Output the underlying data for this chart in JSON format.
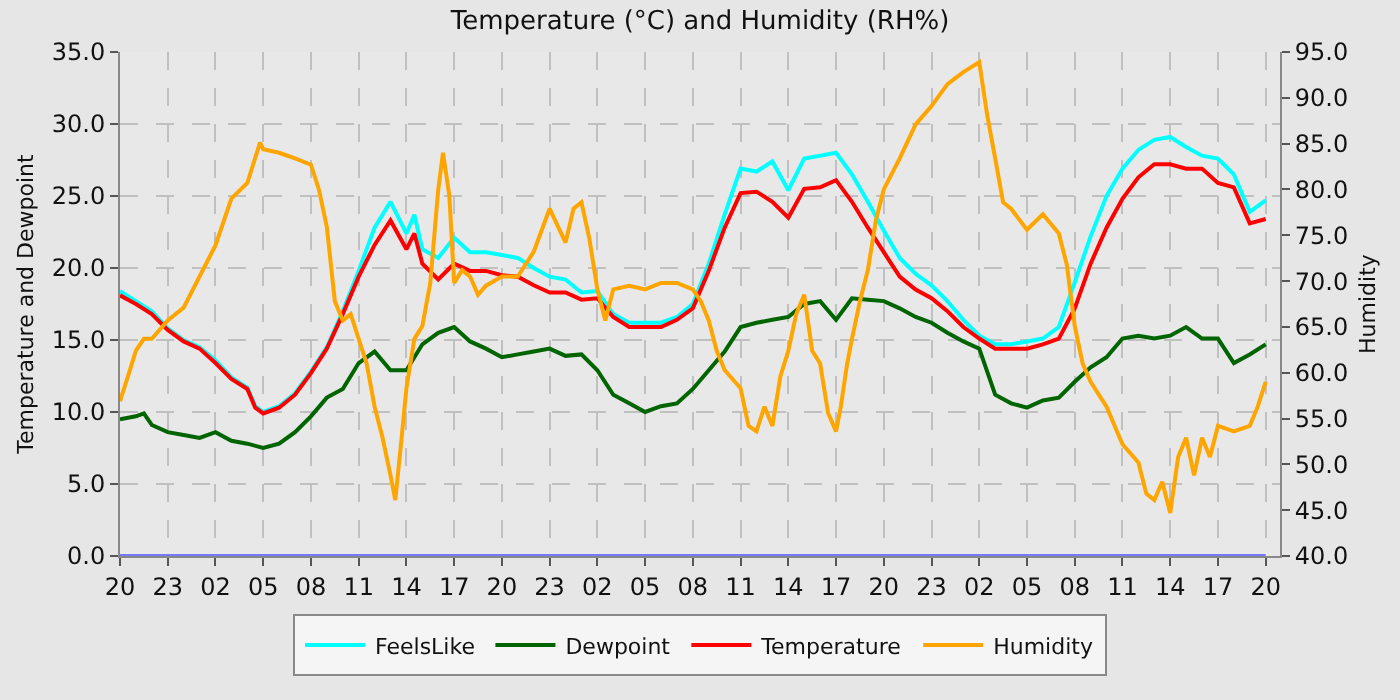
{
  "chart_data": {
    "type": "line",
    "title": "Temperature (°C) and Humidity (RH%)",
    "ylabel": "Temperature and Dewpoint",
    "y2label": "Humidity",
    "xlim": [
      "--01-01T20:00",
      "--01-04T20:54"
    ],
    "ylim": [
      0,
      35
    ],
    "y2lim": [
      40,
      95
    ],
    "xticks": [
      {
        "value": "--01-01T20:00",
        "label": "20"
      },
      {
        "value": "--01-01T23:00",
        "label": "23"
      },
      {
        "value": "--01-02T02:00",
        "label": "02"
      },
      {
        "value": "--01-02T05:00",
        "label": "05"
      },
      {
        "value": "--01-02T08:00",
        "label": "08"
      },
      {
        "value": "--01-02T11:00",
        "label": "11"
      },
      {
        "value": "--01-02T14:00",
        "label": "14"
      },
      {
        "value": "--01-02T17:00",
        "label": "17"
      },
      {
        "value": "--01-02T20:00",
        "label": "20"
      },
      {
        "value": "--01-02T23:00",
        "label": "23"
      },
      {
        "value": "--01-03T02:00",
        "label": "02"
      },
      {
        "value": "--01-03T05:00",
        "label": "05"
      },
      {
        "value": "--01-03T08:00",
        "label": "08"
      },
      {
        "value": "--01-03T11:00",
        "label": "11"
      },
      {
        "value": "--01-03T14:00",
        "label": "14"
      },
      {
        "value": "--01-03T17:00",
        "label": "17"
      },
      {
        "value": "--01-03T20:00",
        "label": "20"
      },
      {
        "value": "--01-03T23:00",
        "label": "23"
      },
      {
        "value": "--01-04T02:00",
        "label": "02"
      },
      {
        "value": "--01-04T05:00",
        "label": "05"
      },
      {
        "value": "--01-04T08:00",
        "label": "08"
      },
      {
        "value": "--01-04T11:00",
        "label": "11"
      },
      {
        "value": "--01-04T14:00",
        "label": "14"
      },
      {
        "value": "--01-04T17:00",
        "label": "17"
      },
      {
        "value": "--01-04T20:00",
        "label": "20"
      }
    ],
    "yticks": [
      {
        "value": 0,
        "label": "0.0"
      },
      {
        "value": 5,
        "label": "5.0"
      },
      {
        "value": 10,
        "label": "10.0"
      },
      {
        "value": 15,
        "label": "15.0"
      },
      {
        "value": 20,
        "label": "20.0"
      },
      {
        "value": 25,
        "label": "25.0"
      },
      {
        "value": 30,
        "label": "30.0"
      },
      {
        "value": 35,
        "label": "35.0"
      }
    ],
    "y2ticks": [
      {
        "value": 40,
        "label": "40.0"
      },
      {
        "value": 45,
        "label": "45.0"
      },
      {
        "value": 50,
        "label": "50.0"
      },
      {
        "value": 55,
        "label": "55.0"
      },
      {
        "value": 60,
        "label": "60.0"
      },
      {
        "value": 65,
        "label": "65.0"
      },
      {
        "value": 70,
        "label": "70.0"
      },
      {
        "value": 75,
        "label": "75.0"
      },
      {
        "value": 80,
        "label": "80.0"
      },
      {
        "value": 85,
        "label": "85.0"
      },
      {
        "value": 90,
        "label": "90.0"
      },
      {
        "value": 95,
        "label": "95.0"
      }
    ],
    "grid": true,
    "legend": "bottom",
    "line_style": "solid",
    "series": [
      {
        "name": "FeelsLike",
        "color": "#00ffff",
        "x": [
          "--01-01T20:00",
          "--01-01T21:00",
          "--01-01T22:00",
          "--01-01T23:00",
          "--01-02T00:00",
          "--01-02T01:00",
          "--01-02T02:00",
          "--01-02T03:00",
          "--01-02T04:00",
          "--01-02T04:30",
          "--01-02T05:00",
          "--01-02T06:00",
          "--01-02T07:00",
          "--01-02T08:00",
          "--01-02T09:00",
          "--01-02T10:00",
          "--01-02T11:00",
          "--01-02T12:00",
          "--01-02T13:00",
          "--01-02T14:00",
          "--01-02T14:30",
          "--01-02T15:00",
          "--01-02T16:00",
          "--01-02T17:00",
          "--01-02T18:00",
          "--01-02T19:00",
          "--01-02T20:00",
          "--01-02T21:00",
          "--01-02T22:00",
          "--01-02T23:00",
          "--01-03T00:00",
          "--01-03T01:00",
          "--01-03T02:00",
          "--01-03T03:00",
          "--01-03T04:00",
          "--01-03T05:00",
          "--01-03T06:00",
          "--01-03T07:00",
          "--01-03T08:00",
          "--01-03T09:00",
          "--01-03T10:00",
          "--01-03T11:00",
          "--01-03T12:00",
          "--01-03T13:00",
          "--01-03T14:00",
          "--01-03T15:00",
          "--01-03T16:00",
          "--01-03T17:00",
          "--01-03T18:00",
          "--01-03T19:00",
          "--01-03T20:00",
          "--01-03T21:00",
          "--01-03T22:00",
          "--01-03T23:00",
          "--01-04T00:00",
          "--01-04T01:00",
          "--01-04T02:00",
          "--01-04T03:00",
          "--01-04T04:00",
          "--01-04T05:00",
          "--01-04T06:00",
          "--01-04T07:00",
          "--01-04T08:00",
          "--01-04T09:00",
          "--01-04T10:00",
          "--01-04T11:00",
          "--01-04T12:00",
          "--01-04T13:00",
          "--01-04T14:00",
          "--01-04T15:00",
          "--01-04T16:00",
          "--01-04T17:00",
          "--01-04T18:00",
          "--01-04T19:00",
          "--01-04T20:00"
        ],
        "values": [
          18.4,
          17.7,
          17.0,
          15.8,
          15.0,
          14.5,
          13.6,
          12.4,
          11.7,
          10.4,
          10.0,
          10.4,
          11.3,
          12.8,
          14.5,
          17.0,
          19.8,
          22.8,
          24.6,
          22.4,
          23.7,
          21.3,
          20.7,
          22.1,
          21.1,
          21.1,
          20.9,
          20.7,
          20.0,
          19.4,
          19.2,
          18.3,
          18.4,
          16.8,
          16.2,
          16.2,
          16.2,
          16.6,
          17.5,
          20.3,
          23.7,
          26.9,
          26.7,
          27.4,
          25.4,
          27.6,
          27.8,
          28.0,
          26.5,
          24.6,
          22.6,
          20.7,
          19.6,
          18.8,
          17.7,
          16.4,
          15.3,
          14.7,
          14.7,
          14.9,
          15.1,
          15.9,
          19.0,
          22.2,
          25.0,
          26.9,
          28.2,
          28.9,
          29.1,
          28.4,
          27.8,
          27.6,
          26.5,
          23.9,
          24.7
        ]
      },
      {
        "name": "Dewpoint",
        "color": "#006400",
        "x": [
          "--01-01T20:00",
          "--01-01T21:00",
          "--01-01T21:30",
          "--01-01T22:00",
          "--01-01T23:00",
          "--01-02T00:00",
          "--01-02T01:00",
          "--01-02T02:00",
          "--01-02T03:00",
          "--01-02T04:00",
          "--01-02T05:00",
          "--01-02T06:00",
          "--01-02T07:00",
          "--01-02T08:00",
          "--01-02T09:00",
          "--01-02T10:00",
          "--01-02T11:00",
          "--01-02T12:00",
          "--01-02T13:00",
          "--01-02T14:00",
          "--01-02T15:00",
          "--01-02T16:00",
          "--01-02T17:00",
          "--01-02T18:00",
          "--01-02T19:00",
          "--01-02T20:00",
          "--01-02T21:00",
          "--01-02T22:00",
          "--01-02T23:00",
          "--01-03T00:00",
          "--01-03T01:00",
          "--01-03T02:00",
          "--01-03T03:00",
          "--01-03T04:00",
          "--01-03T05:00",
          "--01-03T06:00",
          "--01-03T07:00",
          "--01-03T08:00",
          "--01-03T09:00",
          "--01-03T10:00",
          "--01-03T11:00",
          "--01-03T12:00",
          "--01-03T13:00",
          "--01-03T14:00",
          "--01-03T15:00",
          "--01-03T16:00",
          "--01-03T17:00",
          "--01-03T18:00",
          "--01-03T19:00",
          "--01-03T20:00",
          "--01-03T21:00",
          "--01-03T22:00",
          "--01-03T23:00",
          "--01-04T00:00",
          "--01-04T01:00",
          "--01-04T02:00",
          "--01-04T03:00",
          "--01-04T04:00",
          "--01-04T05:00",
          "--01-04T06:00",
          "--01-04T07:00",
          "--01-04T08:00",
          "--01-04T09:00",
          "--01-04T10:00",
          "--01-04T11:00",
          "--01-04T12:00",
          "--01-04T13:00",
          "--01-04T14:00",
          "--01-04T15:00",
          "--01-04T16:00",
          "--01-04T17:00",
          "--01-04T18:00",
          "--01-04T19:00",
          "--01-04T20:00"
        ],
        "values": [
          9.5,
          9.7,
          9.9,
          9.1,
          8.6,
          8.4,
          8.2,
          8.6,
          8.0,
          7.8,
          7.5,
          7.8,
          8.6,
          9.7,
          11.0,
          11.6,
          13.4,
          14.2,
          12.9,
          12.9,
          14.7,
          15.5,
          15.9,
          14.9,
          14.4,
          13.8,
          14.0,
          14.2,
          14.4,
          13.9,
          14.0,
          12.9,
          11.2,
          10.6,
          10.0,
          10.4,
          10.6,
          11.6,
          12.9,
          14.2,
          15.9,
          16.2,
          16.4,
          16.6,
          17.5,
          17.7,
          16.4,
          17.9,
          17.8,
          17.7,
          17.2,
          16.6,
          16.2,
          15.5,
          14.9,
          14.4,
          11.2,
          10.6,
          10.3,
          10.8,
          11.0,
          12.1,
          13.1,
          13.8,
          15.1,
          15.3,
          15.1,
          15.3,
          15.9,
          15.1,
          15.1,
          13.4,
          14.0,
          14.7
        ]
      },
      {
        "name": "Temperature",
        "color": "#ff0000",
        "x": [
          "--01-01T20:00",
          "--01-01T21:00",
          "--01-01T22:00",
          "--01-01T23:00",
          "--01-02T00:00",
          "--01-02T01:00",
          "--01-02T02:00",
          "--01-02T03:00",
          "--01-02T04:00",
          "--01-02T04:30",
          "--01-02T05:00",
          "--01-02T06:00",
          "--01-02T07:00",
          "--01-02T08:00",
          "--01-02T09:00",
          "--01-02T10:00",
          "--01-02T11:00",
          "--01-02T12:00",
          "--01-02T13:00",
          "--01-02T14:00",
          "--01-02T14:30",
          "--01-02T15:00",
          "--01-02T16:00",
          "--01-02T17:00",
          "--01-02T18:00",
          "--01-02T19:00",
          "--01-02T20:00",
          "--01-02T21:00",
          "--01-02T22:00",
          "--01-02T23:00",
          "--01-03T00:00",
          "--01-03T01:00",
          "--01-03T02:00",
          "--01-03T03:00",
          "--01-03T04:00",
          "--01-03T05:00",
          "--01-03T06:00",
          "--01-03T07:00",
          "--01-03T08:00",
          "--01-03T09:00",
          "--01-03T10:00",
          "--01-03T11:00",
          "--01-03T12:00",
          "--01-03T13:00",
          "--01-03T14:00",
          "--01-03T15:00",
          "--01-03T16:00",
          "--01-03T17:00",
          "--01-03T18:00",
          "--01-03T19:00",
          "--01-03T20:00",
          "--01-03T21:00",
          "--01-03T22:00",
          "--01-03T23:00",
          "--01-04T00:00",
          "--01-04T01:00",
          "--01-04T02:00",
          "--01-04T03:00",
          "--01-04T04:00",
          "--01-04T05:00",
          "--01-04T06:00",
          "--01-04T07:00",
          "--01-04T08:00",
          "--01-04T09:00",
          "--01-04T10:00",
          "--01-04T11:00",
          "--01-04T12:00",
          "--01-04T13:00",
          "--01-04T14:00",
          "--01-04T15:00",
          "--01-04T16:00",
          "--01-04T17:00",
          "--01-04T18:00",
          "--01-04T19:00",
          "--01-04T20:00"
        ],
        "values": [
          18.1,
          17.5,
          16.8,
          15.7,
          14.9,
          14.4,
          13.4,
          12.3,
          11.6,
          10.3,
          9.9,
          10.3,
          11.2,
          12.7,
          14.4,
          16.8,
          19.4,
          21.6,
          23.3,
          21.3,
          22.4,
          20.3,
          19.2,
          20.3,
          19.8,
          19.8,
          19.5,
          19.4,
          18.8,
          18.3,
          18.3,
          17.8,
          17.9,
          16.6,
          15.9,
          15.9,
          15.9,
          16.4,
          17.2,
          19.8,
          22.8,
          25.2,
          25.3,
          24.6,
          23.5,
          25.5,
          25.6,
          26.1,
          24.6,
          22.8,
          21.1,
          19.4,
          18.5,
          17.9,
          17.0,
          15.9,
          15.1,
          14.4,
          14.4,
          14.4,
          14.7,
          15.1,
          17.2,
          20.3,
          22.8,
          24.8,
          26.3,
          27.2,
          27.2,
          26.9,
          26.9,
          25.9,
          25.6,
          23.1,
          23.4
        ]
      },
      {
        "name": "Humidity",
        "color": "#ffa500",
        "axis": "y2",
        "x": [
          "--01-01T20:00",
          "--01-01T20:30",
          "--01-01T21:00",
          "--01-01T21:30",
          "--01-01T22:00",
          "--01-01T23:00",
          "--01-02T00:00",
          "--01-02T01:00",
          "--01-02T02:00",
          "--01-02T03:00",
          "--01-02T04:00",
          "--01-02T04:48",
          "--01-02T05:00",
          "--01-02T06:00",
          "--01-02T07:00",
          "--01-02T08:00",
          "--01-02T08:30",
          "--01-02T09:00",
          "--01-02T09:30",
          "--01-02T10:00",
          "--01-02T10:30",
          "--01-02T11:00",
          "--01-02T11:30",
          "--01-02T12:00",
          "--01-02T12:30",
          "--01-02T13:00",
          "--01-02T13:18",
          "--01-02T13:42",
          "--01-02T14:00",
          "--01-02T14:30",
          "--01-02T15:00",
          "--01-02T15:30",
          "--01-02T16:00",
          "--01-02T16:18",
          "--01-02T16:42",
          "--01-02T17:00",
          "--01-02T17:30",
          "--01-02T18:00",
          "--01-02T18:30",
          "--01-02T19:00",
          "--01-02T20:00",
          "--01-02T21:00",
          "--01-02T22:00",
          "--01-02T23:00",
          "--01-03T00:00",
          "--01-03T00:30",
          "--01-03T01:00",
          "--01-03T01:30",
          "--01-03T02:00",
          "--01-03T02:30",
          "--01-03T03:00",
          "--01-03T04:00",
          "--01-03T05:00",
          "--01-03T06:00",
          "--01-03T07:00",
          "--01-03T08:00",
          "--01-03T08:30",
          "--01-03T09:00",
          "--01-03T09:30",
          "--01-03T10:00",
          "--01-03T11:00",
          "--01-03T11:30",
          "--01-03T12:00",
          "--01-03T12:30",
          "--01-03T13:00",
          "--01-03T13:30",
          "--01-03T14:00",
          "--01-03T14:30",
          "--01-03T15:00",
          "--01-03T15:30",
          "--01-03T16:00",
          "--01-03T16:30",
          "--01-03T17:00",
          "--01-03T17:18",
          "--01-03T17:42",
          "--01-03T18:00",
          "--01-03T18:30",
          "--01-03T19:00",
          "--01-03T19:30",
          "--01-03T20:00",
          "--01-03T21:00",
          "--01-03T22:00",
          "--01-03T23:00",
          "--01-04T00:00",
          "--01-04T01:00",
          "--01-04T02:00",
          "--01-04T02:30",
          "--01-04T03:00",
          "--01-04T03:30",
          "--01-04T04:00",
          "--01-04T05:00",
          "--01-04T06:00",
          "--01-04T07:00",
          "--01-04T07:30",
          "--01-04T08:00",
          "--01-04T08:30",
          "--01-04T09:00",
          "--01-04T10:00",
          "--01-04T11:00",
          "--01-04T12:00",
          "--01-04T12:30",
          "--01-04T13:00",
          "--01-04T13:30",
          "--01-04T14:00",
          "--01-04T14:30",
          "--01-04T15:00",
          "--01-04T15:30",
          "--01-04T16:00",
          "--01-04T16:30",
          "--01-04T17:00",
          "--01-04T18:00",
          "--01-04T19:00",
          "--01-04T19:30",
          "--01-04T20:00"
        ],
        "values": [
          56.9,
          59.6,
          62.4,
          63.7,
          63.7,
          65.7,
          67.1,
          70.5,
          73.9,
          79.0,
          80.7,
          85.1,
          84.4,
          84.0,
          83.4,
          82.7,
          80.0,
          75.9,
          67.8,
          65.7,
          66.4,
          63.7,
          61.0,
          56.3,
          52.9,
          48.8,
          46.1,
          52.9,
          58.3,
          63.7,
          65.1,
          69.8,
          80.0,
          84.0,
          79.3,
          69.8,
          71.2,
          70.5,
          68.5,
          69.5,
          70.5,
          70.5,
          73.2,
          77.9,
          74.2,
          77.9,
          78.6,
          74.6,
          69.1,
          65.7,
          69.1,
          69.5,
          69.1,
          69.8,
          69.8,
          69.1,
          67.8,
          65.7,
          62.4,
          60.3,
          58.3,
          54.2,
          53.6,
          56.3,
          54.2,
          59.6,
          62.4,
          66.4,
          68.5,
          62.4,
          61.0,
          55.6,
          53.6,
          56.3,
          61.0,
          63.7,
          67.8,
          71.2,
          76.6,
          80.0,
          83.4,
          87.1,
          89.1,
          91.5,
          92.8,
          93.9,
          88.1,
          83.4,
          78.6,
          77.9,
          75.6,
          77.3,
          75.2,
          71.8,
          65.1,
          61.0,
          59.0,
          56.3,
          52.2,
          50.2,
          46.8,
          46.1,
          48.1,
          44.7,
          50.8,
          52.9,
          48.8,
          52.9,
          50.8,
          54.2,
          53.6,
          54.2,
          56.3,
          59.0
        ]
      },
      {
        "color": "#7878ff",
        "x": [
          "--01-01T20:00",
          "--01-04T20:00"
        ],
        "values": [
          0,
          0
        ]
      }
    ]
  }
}
